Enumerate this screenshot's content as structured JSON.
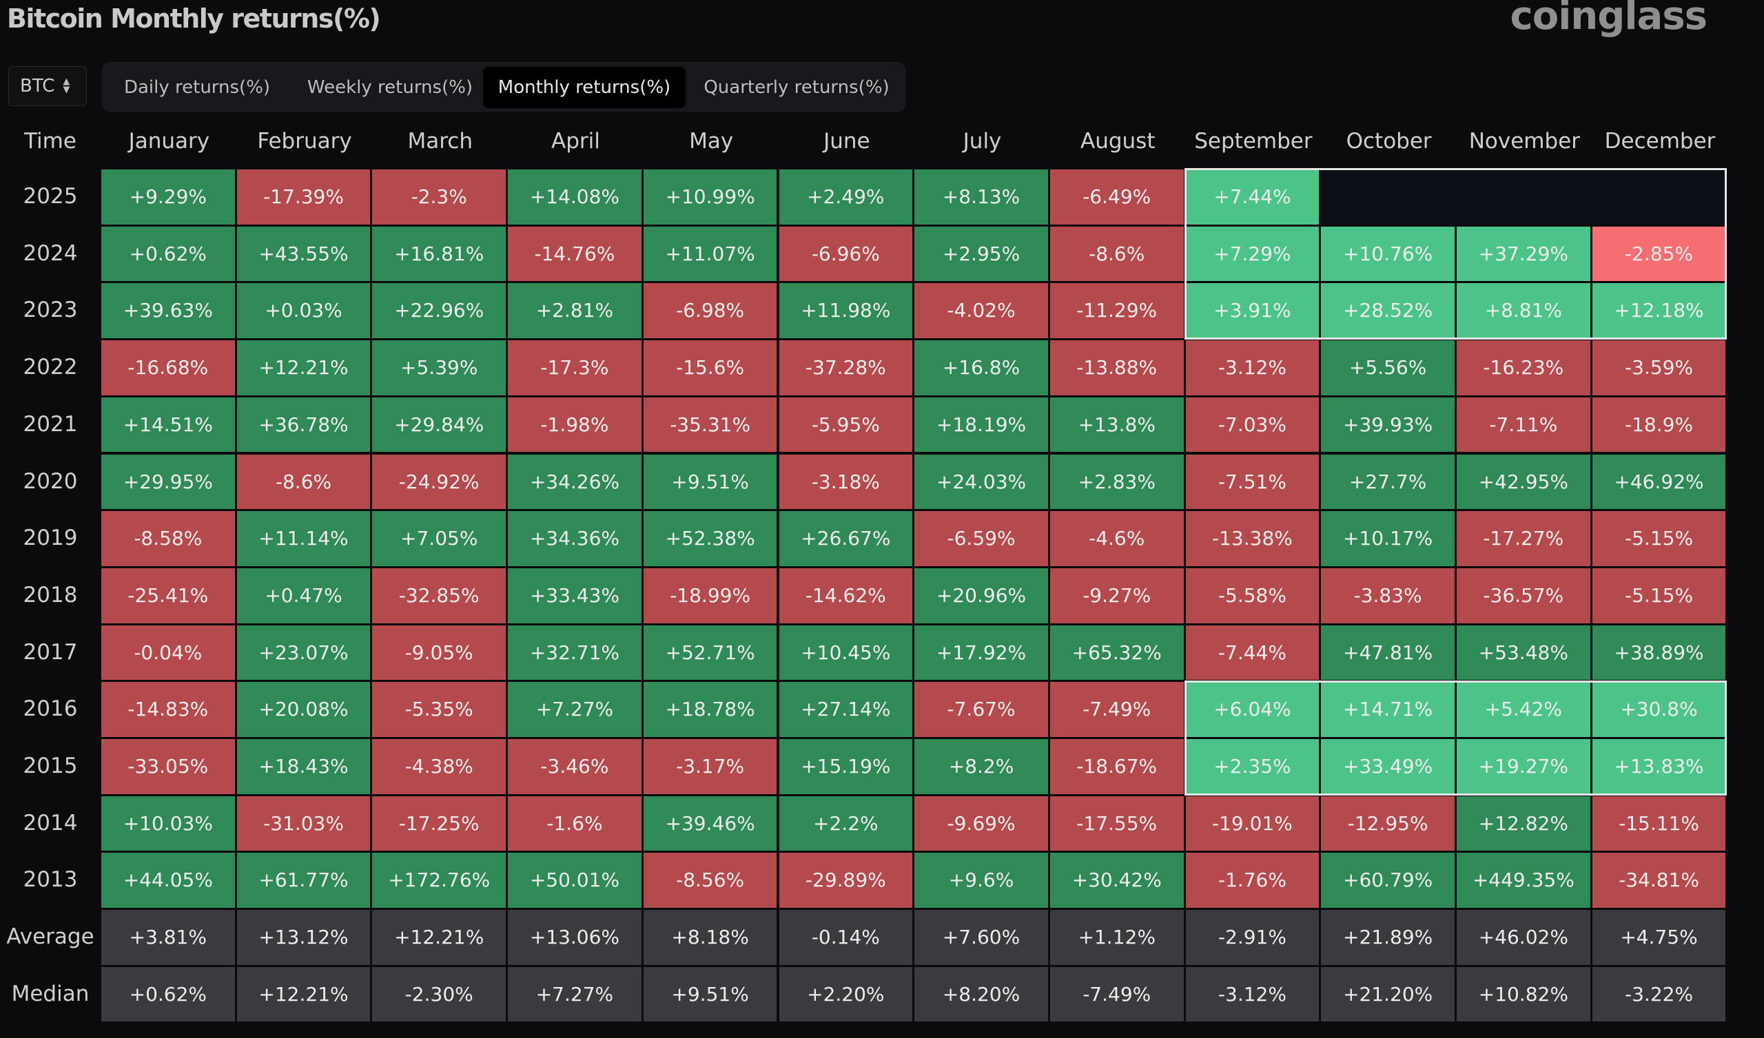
{
  "header": {
    "title": "Bitcoin Monthly returns(%)",
    "brand": "coinglass"
  },
  "coin_select": {
    "value": "BTC"
  },
  "tabs": [
    {
      "label": "Daily returns(%)",
      "active": false
    },
    {
      "label": "Weekly returns(%)",
      "active": false
    },
    {
      "label": "Monthly returns(%)",
      "active": true
    },
    {
      "label": "Quarterly returns(%)",
      "active": false
    }
  ],
  "colors": {
    "positive": "#2f8a58",
    "negative": "#b44a4e",
    "positive_highlight": "#4cc388",
    "negative_highlight": "#f46e72",
    "summary": "#3a3b3f",
    "background": "#0b0b0e"
  },
  "chart_data": {
    "type": "table",
    "corner_label": "Time",
    "columns": [
      "January",
      "February",
      "March",
      "April",
      "May",
      "June",
      "July",
      "August",
      "September",
      "October",
      "November",
      "December"
    ],
    "rows": [
      {
        "label": "2025",
        "values": [
          "+9.29%",
          "-17.39%",
          "-2.3%",
          "+14.08%",
          "+10.99%",
          "+2.49%",
          "+8.13%",
          "-6.49%",
          "+7.44%",
          null,
          null,
          null
        ]
      },
      {
        "label": "2024",
        "values": [
          "+0.62%",
          "+43.55%",
          "+16.81%",
          "-14.76%",
          "+11.07%",
          "-6.96%",
          "+2.95%",
          "-8.6%",
          "+7.29%",
          "+10.76%",
          "+37.29%",
          "-2.85%"
        ]
      },
      {
        "label": "2023",
        "values": [
          "+39.63%",
          "+0.03%",
          "+22.96%",
          "+2.81%",
          "-6.98%",
          "+11.98%",
          "-4.02%",
          "-11.29%",
          "+3.91%",
          "+28.52%",
          "+8.81%",
          "+12.18%"
        ]
      },
      {
        "label": "2022",
        "values": [
          "-16.68%",
          "+12.21%",
          "+5.39%",
          "-17.3%",
          "-15.6%",
          "-37.28%",
          "+16.8%",
          "-13.88%",
          "-3.12%",
          "+5.56%",
          "-16.23%",
          "-3.59%"
        ]
      },
      {
        "label": "2021",
        "values": [
          "+14.51%",
          "+36.78%",
          "+29.84%",
          "-1.98%",
          "-35.31%",
          "-5.95%",
          "+18.19%",
          "+13.8%",
          "-7.03%",
          "+39.93%",
          "-7.11%",
          "-18.9%"
        ]
      },
      {
        "label": "2020",
        "values": [
          "+29.95%",
          "-8.6%",
          "-24.92%",
          "+34.26%",
          "+9.51%",
          "-3.18%",
          "+24.03%",
          "+2.83%",
          "-7.51%",
          "+27.7%",
          "+42.95%",
          "+46.92%"
        ]
      },
      {
        "label": "2019",
        "values": [
          "-8.58%",
          "+11.14%",
          "+7.05%",
          "+34.36%",
          "+52.38%",
          "+26.67%",
          "-6.59%",
          "-4.6%",
          "-13.38%",
          "+10.17%",
          "-17.27%",
          "-5.15%"
        ]
      },
      {
        "label": "2018",
        "values": [
          "-25.41%",
          "+0.47%",
          "-32.85%",
          "+33.43%",
          "-18.99%",
          "-14.62%",
          "+20.96%",
          "-9.27%",
          "-5.58%",
          "-3.83%",
          "-36.57%",
          "-5.15%"
        ]
      },
      {
        "label": "2017",
        "values": [
          "-0.04%",
          "+23.07%",
          "-9.05%",
          "+32.71%",
          "+52.71%",
          "+10.45%",
          "+17.92%",
          "+65.32%",
          "-7.44%",
          "+47.81%",
          "+53.48%",
          "+38.89%"
        ]
      },
      {
        "label": "2016",
        "values": [
          "-14.83%",
          "+20.08%",
          "-5.35%",
          "+7.27%",
          "+18.78%",
          "+27.14%",
          "-7.67%",
          "-7.49%",
          "+6.04%",
          "+14.71%",
          "+5.42%",
          "+30.8%"
        ]
      },
      {
        "label": "2015",
        "values": [
          "-33.05%",
          "+18.43%",
          "-4.38%",
          "-3.46%",
          "-3.17%",
          "+15.19%",
          "+8.2%",
          "-18.67%",
          "+2.35%",
          "+33.49%",
          "+19.27%",
          "+13.83%"
        ]
      },
      {
        "label": "2014",
        "values": [
          "+10.03%",
          "-31.03%",
          "-17.25%",
          "-1.6%",
          "+39.46%",
          "+2.2%",
          "-9.69%",
          "-17.55%",
          "-19.01%",
          "-12.95%",
          "+12.82%",
          "-15.11%"
        ]
      },
      {
        "label": "2013",
        "values": [
          "+44.05%",
          "+61.77%",
          "+172.76%",
          "+50.01%",
          "-8.56%",
          "-29.89%",
          "+9.6%",
          "+30.42%",
          "-1.76%",
          "+60.79%",
          "+449.35%",
          "-34.81%"
        ]
      }
    ],
    "summary_rows": [
      {
        "label": "Average",
        "values": [
          "+3.81%",
          "+13.12%",
          "+12.21%",
          "+13.06%",
          "+8.18%",
          "-0.14%",
          "+7.60%",
          "+1.12%",
          "-2.91%",
          "+21.89%",
          "+46.02%",
          "+4.75%"
        ]
      },
      {
        "label": "Median",
        "values": [
          "+0.62%",
          "+12.21%",
          "-2.30%",
          "+7.27%",
          "+9.51%",
          "+2.20%",
          "+8.20%",
          "-7.49%",
          "-3.12%",
          "+21.20%",
          "+10.82%",
          "-3.22%"
        ]
      }
    ],
    "highlight_groups": [
      {
        "rows": [
          "2025",
          "2024",
          "2023"
        ],
        "columns": [
          "September",
          "October",
          "November",
          "December"
        ]
      },
      {
        "rows": [
          "2016",
          "2015"
        ],
        "columns": [
          "September",
          "October",
          "November",
          "December"
        ]
      }
    ]
  }
}
